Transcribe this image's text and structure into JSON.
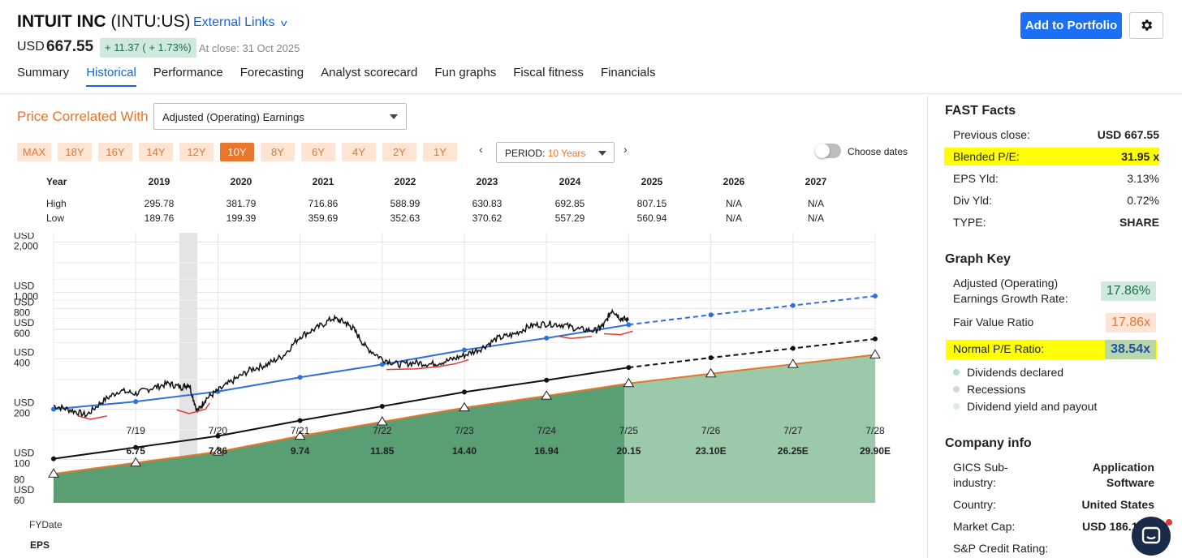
{
  "header": {
    "company": "INTUIT INC",
    "ticker": "(INTU:US)",
    "external_links": "External Links",
    "currency": "USD",
    "price": "667.55",
    "change": "+ 11.37 ( + 1.73%)",
    "close_text": "At close: 31 Oct 2025",
    "add_button": "Add to Portfolio",
    "tabs": [
      "Summary",
      "Historical",
      "Performance",
      "Forecasting",
      "Analyst scorecard",
      "Fun graphs",
      "Fiscal fitness",
      "Financials"
    ],
    "active_tab": "Historical"
  },
  "controls": {
    "price_correlated_label": "Price Correlated With",
    "correlated_value": "Adjusted (Operating) Earnings",
    "period_buttons": [
      "MAX",
      "18Y",
      "16Y",
      "14Y",
      "12Y",
      "10Y",
      "8Y",
      "6Y",
      "4Y",
      "2Y",
      "1Y"
    ],
    "active_period": "10Y",
    "period_label": "PERIOD:",
    "period_value": "10 Years",
    "choose_dates": "Choose dates",
    "nav_prev": "‹",
    "nav_next": "›"
  },
  "year_table": {
    "year_label": "Year",
    "high_label": "High",
    "low_label": "Low",
    "years": [
      "2019",
      "2020",
      "2021",
      "2022",
      "2023",
      "2024",
      "2025",
      "2026",
      "2027"
    ],
    "high": [
      "295.78",
      "381.79",
      "716.86",
      "588.99",
      "630.83",
      "692.85",
      "807.15",
      "N/A",
      "N/A"
    ],
    "low": [
      "189.76",
      "199.39",
      "359.69",
      "352.63",
      "370.62",
      "557.29",
      "560.94",
      "N/A",
      "N/A"
    ]
  },
  "chart_data": {
    "type": "line",
    "scale": "log",
    "y_tick_labels": [
      {
        "unit": "USD",
        "value": "2,000"
      },
      {
        "unit": "USD",
        "value": "1,000"
      },
      {
        "unit": "USD",
        "value": "800"
      },
      {
        "unit": "USD",
        "value": "600"
      },
      {
        "unit": "USD",
        "value": "400"
      },
      {
        "unit": "USD",
        "value": "200"
      },
      {
        "unit": "USD",
        "value": "100"
      },
      {
        "unit": "",
        "value": "80"
      },
      {
        "unit": "USD",
        "value": "60"
      }
    ],
    "y_ticks": [
      2000,
      1000,
      800,
      600,
      400,
      200,
      100,
      80,
      60
    ],
    "ylim": [
      55,
      2100
    ],
    "x_label": "FYDate",
    "x_dates": [
      "7/19",
      "7/20",
      "7/21",
      "7/22",
      "7/23",
      "7/24",
      "7/25",
      "7/26",
      "7/27",
      "7/28"
    ],
    "x_start": 2018.3,
    "eps_label": "EPS",
    "eps": [
      "6.75",
      "7.86",
      "9.74",
      "11.85",
      "14.40",
      "16.94",
      "20.15",
      "23.10E",
      "26.25E",
      "29.90E"
    ],
    "recession_band": [
      2019.83,
      2020.05
    ],
    "forecast_start": 2025.25,
    "fair_value_line": {
      "x": [
        2018.3,
        2019.3,
        2020.3,
        2021.3,
        2022.3,
        2023.3,
        2024.3,
        2025.3,
        2026.3,
        2027.3,
        2028.3
      ],
      "y": [
        101,
        118,
        138,
        171,
        208,
        253,
        298,
        355,
        406,
        462,
        526
      ]
    },
    "normal_pe_line": {
      "x": [
        2018.3,
        2019.3,
        2020.3,
        2021.3,
        2022.3,
        2023.3,
        2024.3,
        2025.3,
        2026.3,
        2027.3,
        2028.3
      ],
      "y": [
        200,
        222,
        255,
        310,
        370,
        452,
        532,
        640,
        733,
        834,
        950
      ]
    },
    "earnings_bounds": {
      "x": [
        2018.3,
        2019.3,
        2020.3,
        2021.3,
        2022.3,
        2023.3,
        2024.3,
        2025.3,
        2026.3,
        2027.3,
        2028.3
      ],
      "y": [
        82,
        95.5,
        111,
        138,
        168,
        204,
        240,
        285,
        326,
        371,
        423
      ]
    },
    "price": {
      "x": [
        2018.3,
        2018.5,
        2018.7,
        2018.9,
        2019.1,
        2019.3,
        2019.5,
        2019.7,
        2019.85,
        2019.95,
        2020.05,
        2020.15,
        2020.3,
        2020.5,
        2020.7,
        2020.9,
        2021.1,
        2021.3,
        2021.5,
        2021.7,
        2021.85,
        2021.95,
        2022.1,
        2022.3,
        2022.5,
        2022.7,
        2022.9,
        2023.1,
        2023.3,
        2023.5,
        2023.7,
        2023.9,
        2024.1,
        2024.3,
        2024.5,
        2024.7,
        2024.9,
        2025.0,
        2025.1,
        2025.2,
        2025.3
      ],
      "y": [
        210,
        198,
        184,
        224,
        258,
        248,
        268,
        285,
        270,
        282,
        192,
        230,
        258,
        300,
        345,
        370,
        420,
        545,
        610,
        700,
        660,
        605,
        470,
        400,
        370,
        380,
        372,
        390,
        420,
        460,
        530,
        560,
        630,
        650,
        640,
        600,
        590,
        640,
        790,
        700,
        680
      ]
    }
  },
  "fast_facts": {
    "title": "FAST Facts",
    "items": [
      {
        "k": "Previous close:",
        "v": "USD 667.55"
      },
      {
        "k": "Blended P/E:",
        "v": "31.95 x"
      },
      {
        "k": "EPS Yld:",
        "v": "3.13%"
      },
      {
        "k": "Div Yld:",
        "v": "0.72%"
      },
      {
        "k": "TYPE:",
        "v": "SHARE"
      }
    ]
  },
  "graph_key": {
    "title": "Graph Key",
    "growth_label_1": "Adjusted (Operating)",
    "growth_label_2": "Earnings Growth Rate:",
    "growth_value": "17.86%",
    "fvr_label": "Fair Value Ratio",
    "fvr_value": "17.86x",
    "npe_label": "Normal P/E Ratio:",
    "npe_value": "38.54x",
    "legend": [
      "Dividends declared",
      "Recessions",
      "Dividend yield and payout"
    ]
  },
  "company_info": {
    "title": "Company info",
    "gics_label_1": "GICS Sub-",
    "gics_label_2": "industry:",
    "gics_value_1": "Application",
    "gics_value_2": "Software",
    "country_label": "Country:",
    "country_value": "United States",
    "mcap_label": "Market Cap:",
    "mcap_value": "USD 186.1",
    "credit_label": "S&P Credit Rating:"
  },
  "colors": {
    "accent_orange": "#e8762c",
    "link_blue": "#1565d8",
    "normal_pe_blue": "#2f6fe0",
    "fill_green": "#5a9e73",
    "highlight": "#ffff00"
  }
}
